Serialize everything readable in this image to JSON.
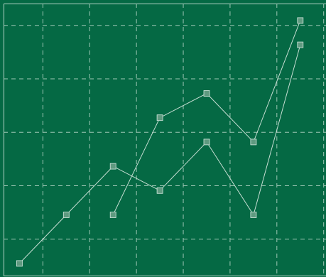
{
  "chart_data": {
    "type": "line",
    "title": "",
    "xlabel": "",
    "ylabel": "",
    "grid": true,
    "legend": "none",
    "x": [
      1,
      2,
      3,
      4,
      5,
      6,
      7
    ],
    "xlim": [
      0.66,
      7.55
    ],
    "ylim": [
      0.5,
      11.7
    ],
    "series": [
      {
        "points": [
          [
            1,
            1
          ],
          [
            2,
            3
          ],
          [
            3,
            5
          ],
          [
            4,
            4
          ],
          [
            5,
            6
          ],
          [
            6,
            3
          ],
          [
            7,
            10
          ]
        ]
      },
      {
        "points": [
          [
            3,
            3
          ],
          [
            4,
            7
          ],
          [
            5,
            8
          ],
          [
            6,
            6
          ],
          [
            7,
            11
          ]
        ]
      }
    ]
  },
  "colors": {
    "background": "#056944",
    "grid": "#9fc7b5",
    "frame": "#b7d6c8",
    "line": "#c5ddd2",
    "marker_fill": "#5f9a80",
    "marker_stroke": "#d5e8df"
  }
}
